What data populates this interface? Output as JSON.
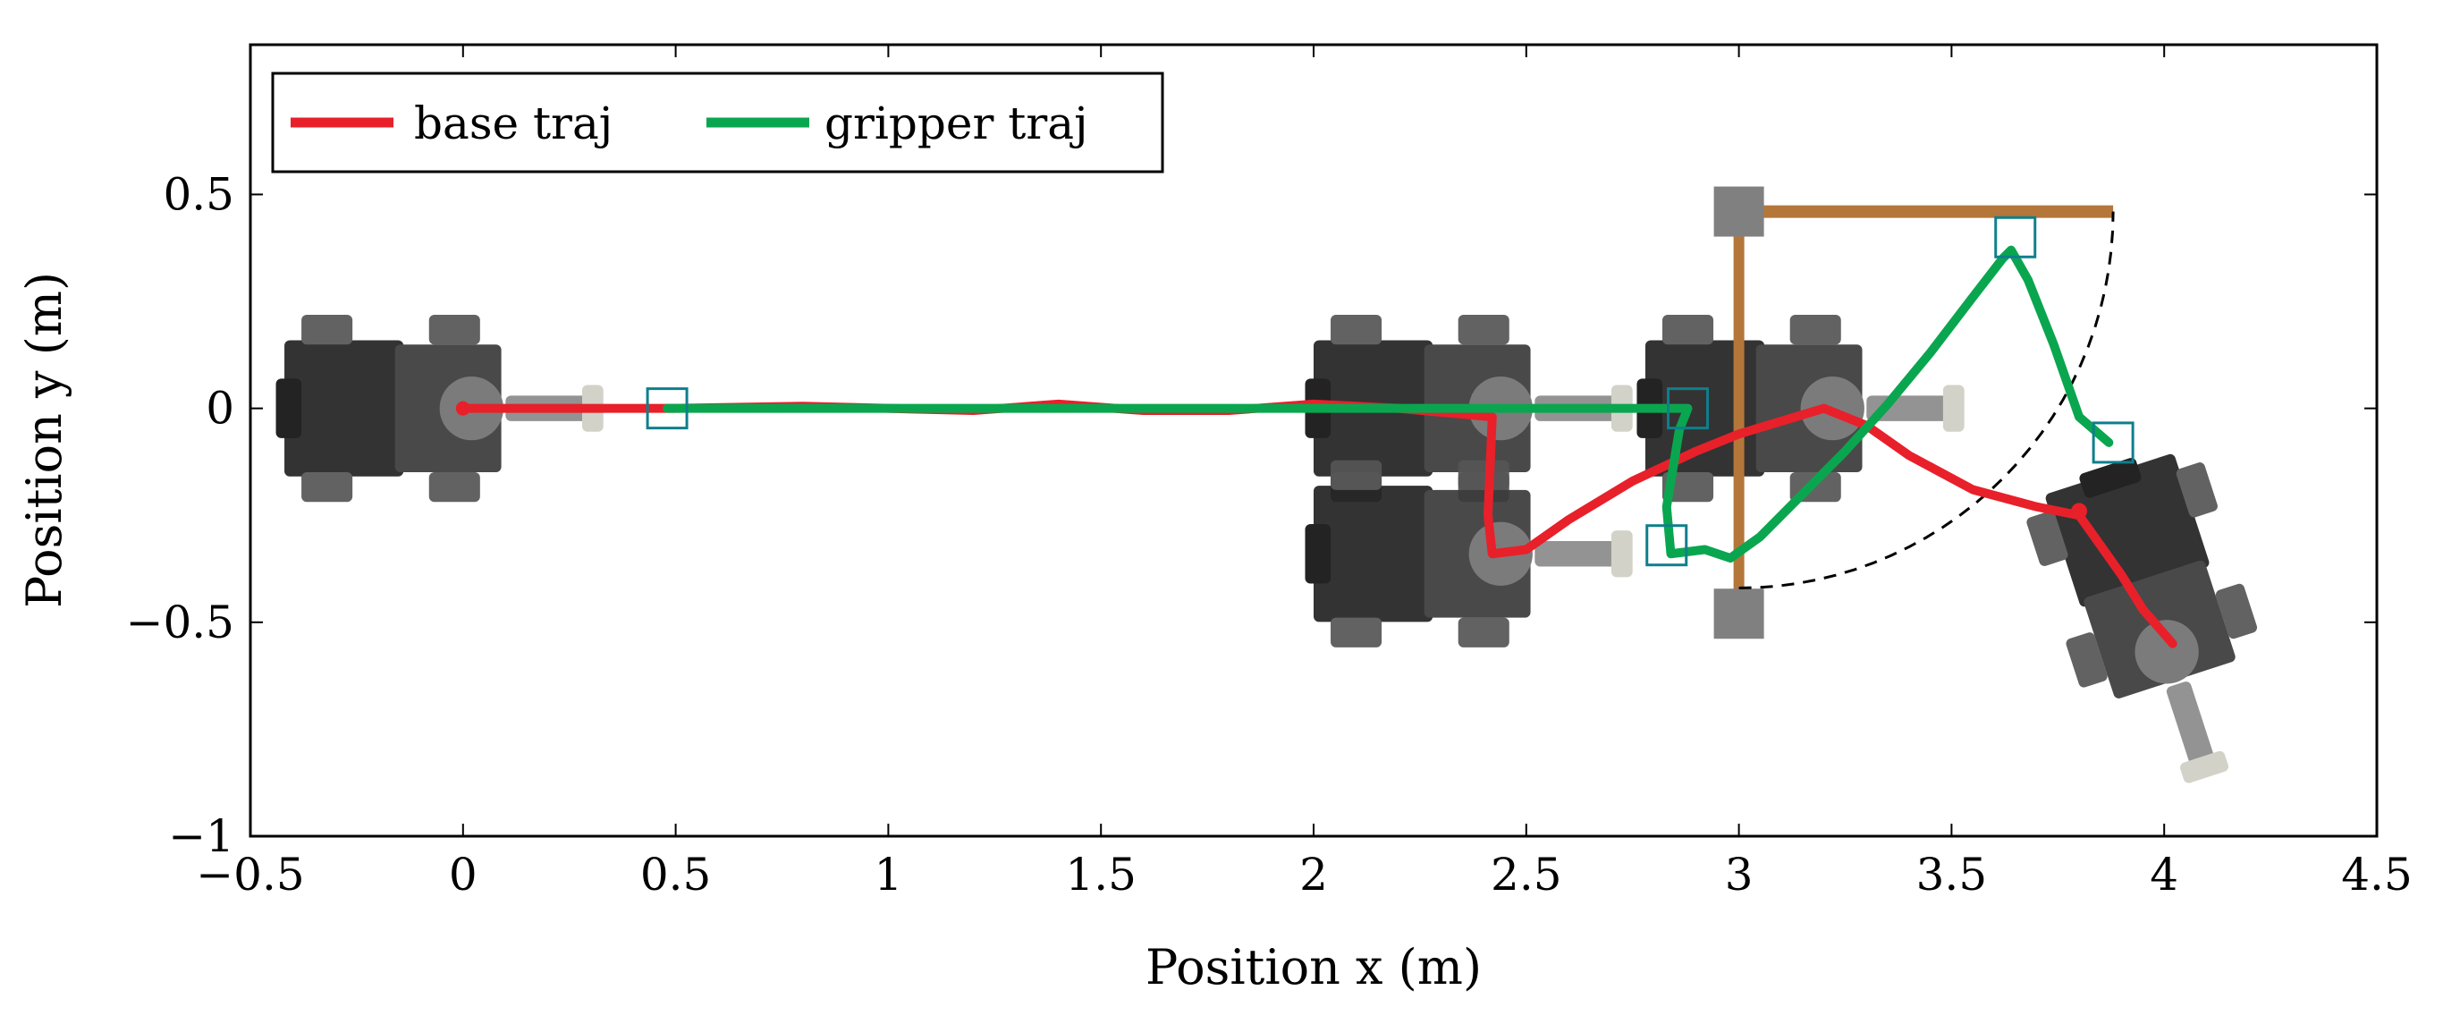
{
  "chart_data": {
    "type": "line",
    "title": "",
    "xlabel": "Position x (m)",
    "ylabel": "Position y (m)",
    "xlim": [
      -0.5,
      4.5
    ],
    "ylim": [
      -1.0,
      0.85
    ],
    "xticks": [
      -0.5,
      0,
      0.5,
      1,
      1.5,
      2,
      2.5,
      3,
      3.5,
      4,
      4.5
    ],
    "xtick_labels": [
      "−0.5",
      "0",
      "0.5",
      "1",
      "1.5",
      "2",
      "2.5",
      "3",
      "3.5",
      "4",
      "4.5"
    ],
    "yticks": [
      -1,
      -0.5,
      0,
      0.5
    ],
    "ytick_labels": [
      "−1",
      "−0.5",
      "0",
      "0.5"
    ],
    "grid": false,
    "legend_position": "top-left",
    "series": [
      {
        "name": "base traj",
        "color": "#e8202a",
        "x": [
          0.0,
          0.3,
          0.5,
          0.8,
          1.0,
          1.2,
          1.4,
          1.6,
          1.8,
          2.0,
          2.2,
          2.42,
          2.41,
          2.42,
          2.5,
          2.6,
          2.75,
          2.9,
          3.0,
          3.1,
          3.2,
          3.3,
          3.4,
          3.55,
          3.7,
          3.8,
          3.85,
          3.9,
          3.95,
          4.02
        ],
        "y": [
          0.0,
          0.0,
          0.0,
          0.005,
          0.0,
          -0.005,
          0.01,
          -0.005,
          -0.005,
          0.01,
          0.0,
          -0.02,
          -0.25,
          -0.34,
          -0.33,
          -0.26,
          -0.17,
          -0.1,
          -0.06,
          -0.03,
          0.0,
          -0.04,
          -0.11,
          -0.19,
          -0.23,
          -0.25,
          -0.32,
          -0.39,
          -0.47,
          -0.55
        ]
      },
      {
        "name": "gripper traj",
        "color": "#0aa64f",
        "x": [
          0.48,
          1.0,
          1.5,
          2.0,
          2.5,
          2.88,
          2.86,
          2.83,
          2.84,
          2.92,
          2.98,
          3.05,
          3.15,
          3.25,
          3.35,
          3.45,
          3.55,
          3.62,
          3.64,
          3.68,
          3.74,
          3.8,
          3.87
        ],
        "y": [
          0.0,
          0.0,
          0.0,
          0.0,
          0.0,
          0.0,
          -0.05,
          -0.23,
          -0.34,
          -0.33,
          -0.35,
          -0.3,
          -0.2,
          -0.1,
          0.01,
          0.13,
          0.26,
          0.35,
          0.37,
          0.3,
          0.15,
          -0.02,
          -0.08
        ]
      }
    ],
    "annotations": {
      "gripper_markers": [
        {
          "x": 0.48,
          "y": 0.0
        },
        {
          "x": 2.88,
          "y": 0.0
        },
        {
          "x": 2.83,
          "y": -0.32
        },
        {
          "x": 3.65,
          "y": 0.4
        },
        {
          "x": 3.88,
          "y": -0.08
        }
      ],
      "door": {
        "color": "#b5763a",
        "frame_x": 3.0,
        "frame_y_range": [
          -0.47,
          0.46
        ],
        "panel_y": 0.46,
        "panel_x_range": [
          3.0,
          3.88
        ],
        "hinge_posts": [
          {
            "x": 3.0,
            "y": 0.46
          },
          {
            "x": 3.0,
            "y": -0.48
          }
        ],
        "swing_arc_center": {
          "x": 3.0,
          "y": 0.46
        },
        "swing_arc_radius": 0.88
      },
      "robot_poses": [
        {
          "x": 0.0,
          "y": 0.0,
          "theta_deg": 0
        },
        {
          "x": 2.42,
          "y": 0.0,
          "theta_deg": 0
        },
        {
          "x": 2.42,
          "y": -0.34,
          "theta_deg": 0
        },
        {
          "x": 3.2,
          "y": 0.0,
          "theta_deg": 0
        },
        {
          "x": 4.0,
          "y": -0.55,
          "theta_deg": 72
        }
      ]
    }
  }
}
